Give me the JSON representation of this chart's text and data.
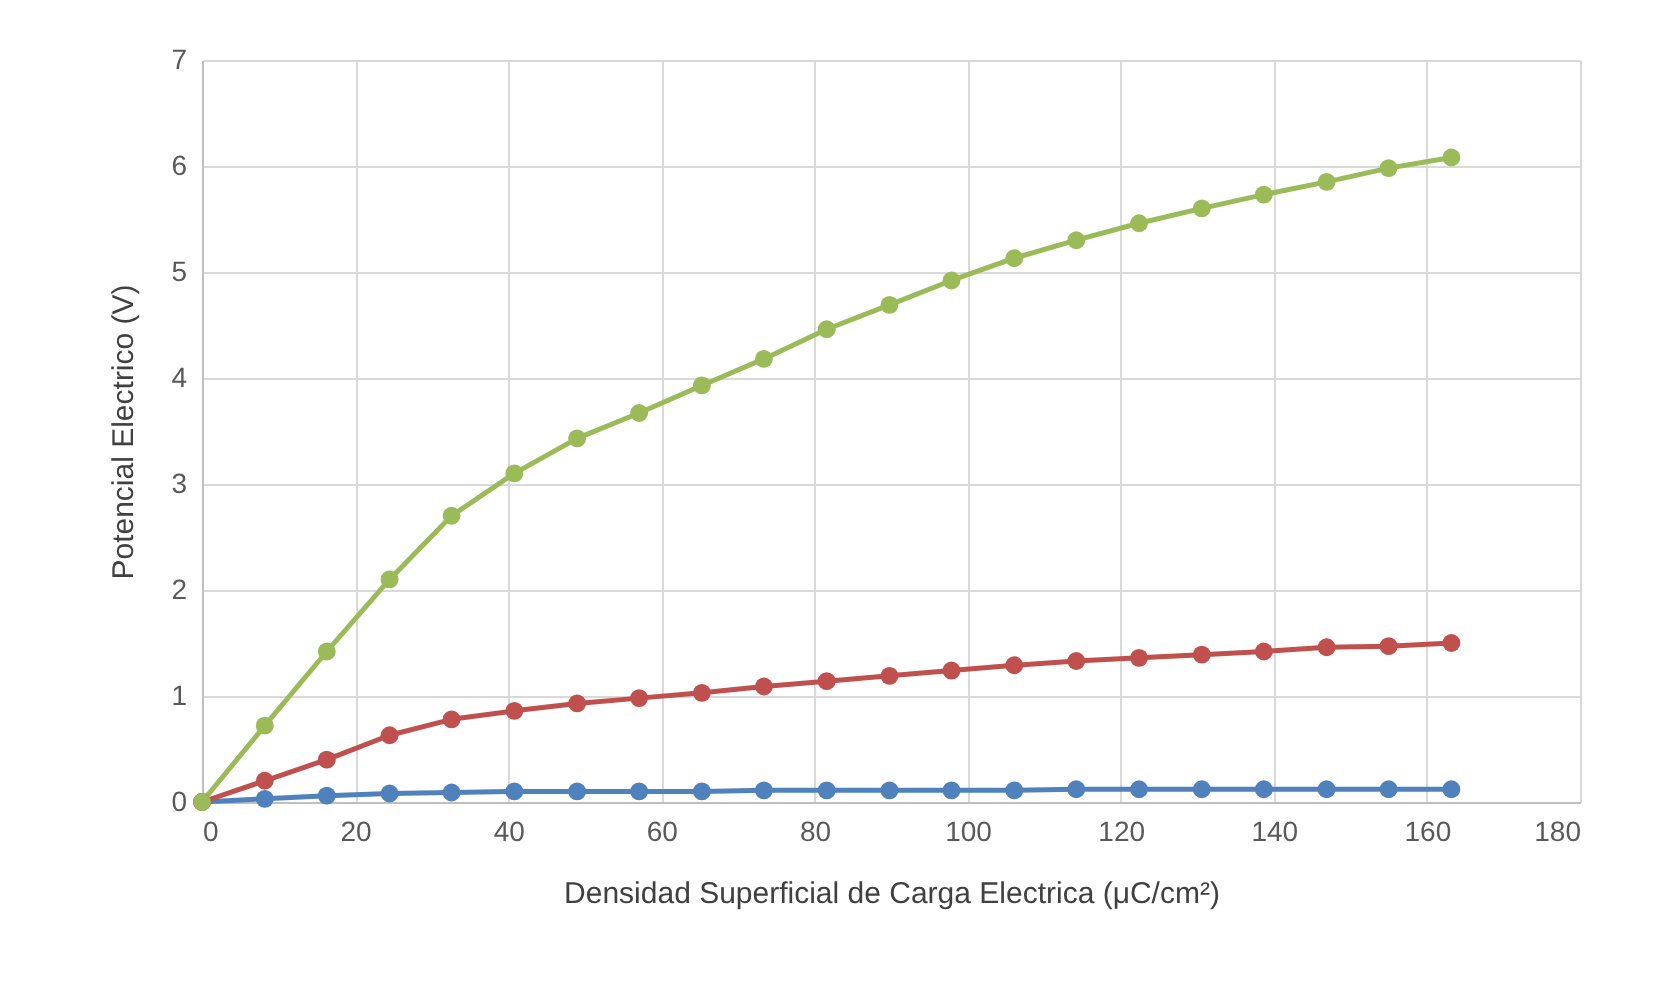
{
  "chart_data": {
    "type": "line",
    "xlabel": "Densidad Superficial de Carga Electrica (μC/cm²)",
    "ylabel": "Potencial Electrico (V)",
    "x": [
      0,
      8.2,
      16.3,
      24.5,
      32.6,
      40.8,
      49,
      57.1,
      65.3,
      73.4,
      81.6,
      89.8,
      97.9,
      106.1,
      114.2,
      122.4,
      130.6,
      138.7,
      146.9,
      155,
      163.2
    ],
    "series": [
      {
        "color": "#4f81bd",
        "values": [
          0,
          0.03,
          0.06,
          0.08,
          0.09,
          0.1,
          0.1,
          0.1,
          0.1,
          0.11,
          0.11,
          0.11,
          0.11,
          0.11,
          0.12,
          0.12,
          0.12,
          0.12,
          0.12,
          0.12,
          0.12
        ]
      },
      {
        "color": "#c0504d",
        "values": [
          0,
          0.2,
          0.4,
          0.63,
          0.78,
          0.86,
          0.93,
          0.98,
          1.03,
          1.09,
          1.14,
          1.19,
          1.24,
          1.29,
          1.33,
          1.36,
          1.39,
          1.42,
          1.46,
          1.47,
          1.5
        ]
      },
      {
        "color": "#9bbb59",
        "values": [
          0,
          0.72,
          1.42,
          2.1,
          2.7,
          3.1,
          3.43,
          3.67,
          3.93,
          4.18,
          4.46,
          4.69,
          4.92,
          5.13,
          5.3,
          5.46,
          5.6,
          5.73,
          5.85,
          5.98,
          6.08
        ]
      }
    ],
    "xlim": [
      0,
      180
    ],
    "xticks": [
      0,
      20,
      40,
      60,
      80,
      100,
      120,
      140,
      160,
      180
    ],
    "ylim": [
      0,
      7
    ],
    "yticks": [
      0,
      1,
      2,
      3,
      4,
      5,
      6,
      7
    ],
    "grid": true,
    "marker": "circle",
    "line_style": "solid"
  }
}
